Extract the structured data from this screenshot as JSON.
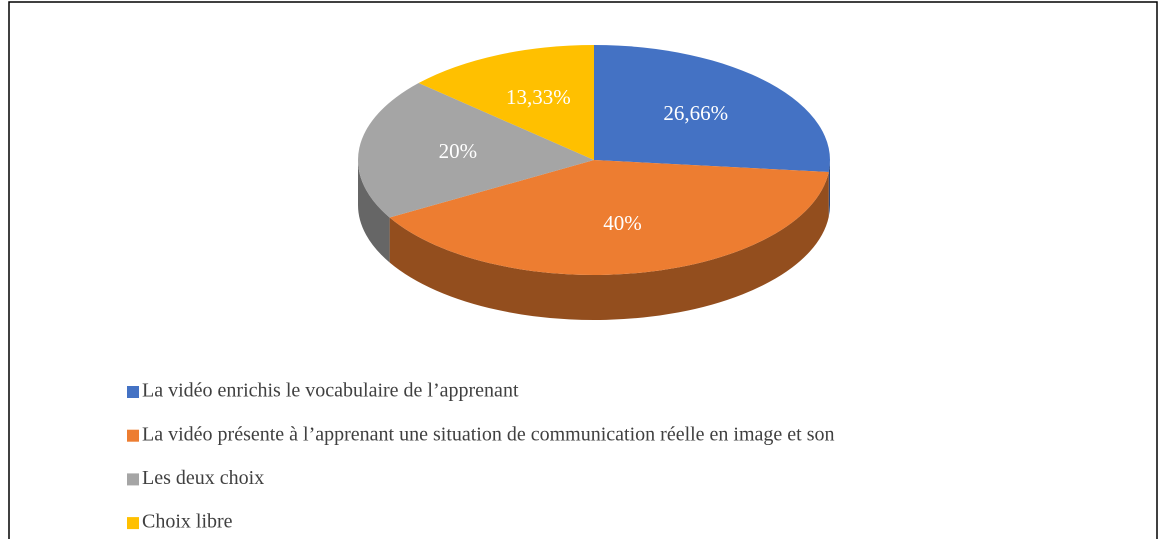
{
  "chart_data": {
    "type": "pie",
    "categories": [
      "La vidéo enrichis le vocabulaire de l’apprenant",
      "La vidéo présente à l’apprenant une situation de communication réelle en image et son",
      "Les deux choix",
      "Choix libre"
    ],
    "values": [
      26.66,
      40,
      20,
      13.33
    ],
    "value_labels": [
      "26,66%",
      "40%",
      "20%",
      "13,33%"
    ],
    "colors": [
      "#4472c4",
      "#ed7d31",
      "#a5a5a5",
      "#ffc000"
    ],
    "legend": "bottom"
  }
}
